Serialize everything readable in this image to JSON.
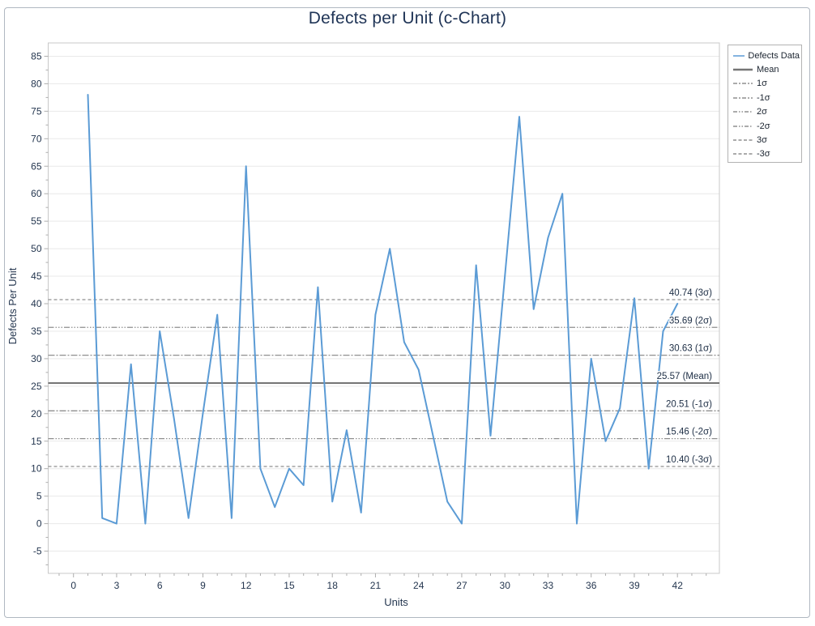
{
  "title": "Defects per Unit (c-Chart)",
  "colors": {
    "series_blue": "#5b9bd5",
    "mean_gray": "#757575",
    "sigma_gray": "#8f8f8f",
    "text_navy": "#24364f",
    "title_navy": "#1f3456",
    "grid": "#e9e9e9",
    "plot_border": "#c8c8c8",
    "tick": "#adadad",
    "panel_border": "#b0b8c1",
    "legend_border": "#b3b3b3",
    "legend_text": "#1b2430",
    "annotation_text": "#1d2e45"
  },
  "x_axis": {
    "label": "Units",
    "tick_labels": [
      0,
      3,
      6,
      9,
      12,
      15,
      18,
      21,
      24,
      27,
      30,
      33,
      36,
      39,
      42
    ],
    "minor_step": 1,
    "range": [
      -1.76,
      44.9
    ]
  },
  "y_axis": {
    "label": "Defects Per Unit",
    "tick_labels": [
      -5,
      0,
      5,
      10,
      15,
      20,
      25,
      30,
      35,
      40,
      45,
      50,
      55,
      60,
      65,
      70,
      75,
      80,
      85
    ],
    "minor_step": 2.5,
    "range": [
      -9.04,
      87.42
    ]
  },
  "legend": {
    "items": [
      {
        "label": "Defects Data",
        "style": "data"
      },
      {
        "label": "Mean",
        "style": "mean"
      },
      {
        "label": "1σ",
        "style": "sigma1"
      },
      {
        "label": "-1σ",
        "style": "sigma1"
      },
      {
        "label": "2σ",
        "style": "sigma2"
      },
      {
        "label": "-2σ",
        "style": "sigma2"
      },
      {
        "label": "3σ",
        "style": "sigma3"
      },
      {
        "label": "-3σ",
        "style": "sigma3"
      }
    ]
  },
  "control_lines": [
    {
      "value": 40.74,
      "label": "40.74 (3σ)",
      "style": "sigma3"
    },
    {
      "value": 35.69,
      "label": "35.69 (2σ)",
      "style": "sigma2"
    },
    {
      "value": 30.63,
      "label": "30.63 (1σ)",
      "style": "sigma1"
    },
    {
      "value": 25.57,
      "label": "25.57 (Mean)",
      "style": "mean"
    },
    {
      "value": 20.51,
      "label": "20.51 (-1σ)",
      "style": "sigma1"
    },
    {
      "value": 15.46,
      "label": "15.46 (-2σ)",
      "style": "sigma2"
    },
    {
      "value": 10.4,
      "label": "10.40 (-3σ)",
      "style": "sigma3"
    }
  ],
  "chart_data": {
    "type": "line",
    "title": "Defects per Unit (c-Chart)",
    "xlabel": "Units",
    "ylabel": "Defects Per Unit",
    "series": [
      {
        "name": "Defects Data",
        "x": [
          1,
          2,
          3,
          4,
          5,
          6,
          7,
          8,
          9,
          10,
          11,
          12,
          13,
          14,
          15,
          16,
          17,
          18,
          19,
          20,
          21,
          22,
          23,
          24,
          25,
          26,
          27,
          28,
          29,
          30,
          31,
          32,
          33,
          34,
          35,
          36,
          37,
          38,
          39,
          40,
          41,
          42
        ],
        "y": [
          78,
          1,
          0,
          29,
          0,
          35,
          19,
          1,
          20,
          38,
          1,
          65,
          10,
          3,
          10,
          7,
          43,
          4,
          17,
          2,
          38,
          50,
          33,
          28,
          16,
          4,
          0,
          47,
          16,
          45,
          74,
          39,
          52,
          60,
          0,
          30,
          15,
          21,
          41,
          10,
          35,
          40
        ]
      }
    ],
    "control_limits": {
      "plus3sigma": 40.74,
      "plus2sigma": 35.69,
      "plus1sigma": 30.63,
      "mean": 25.57,
      "minus1sigma": 20.51,
      "minus2sigma": 15.46,
      "minus3sigma": 10.4
    },
    "x_range": [
      -1.76,
      44.9
    ],
    "y_range": [
      -9.04,
      87.42
    ],
    "grid": "horizontal-only",
    "legend_position": "outside-top-right"
  }
}
